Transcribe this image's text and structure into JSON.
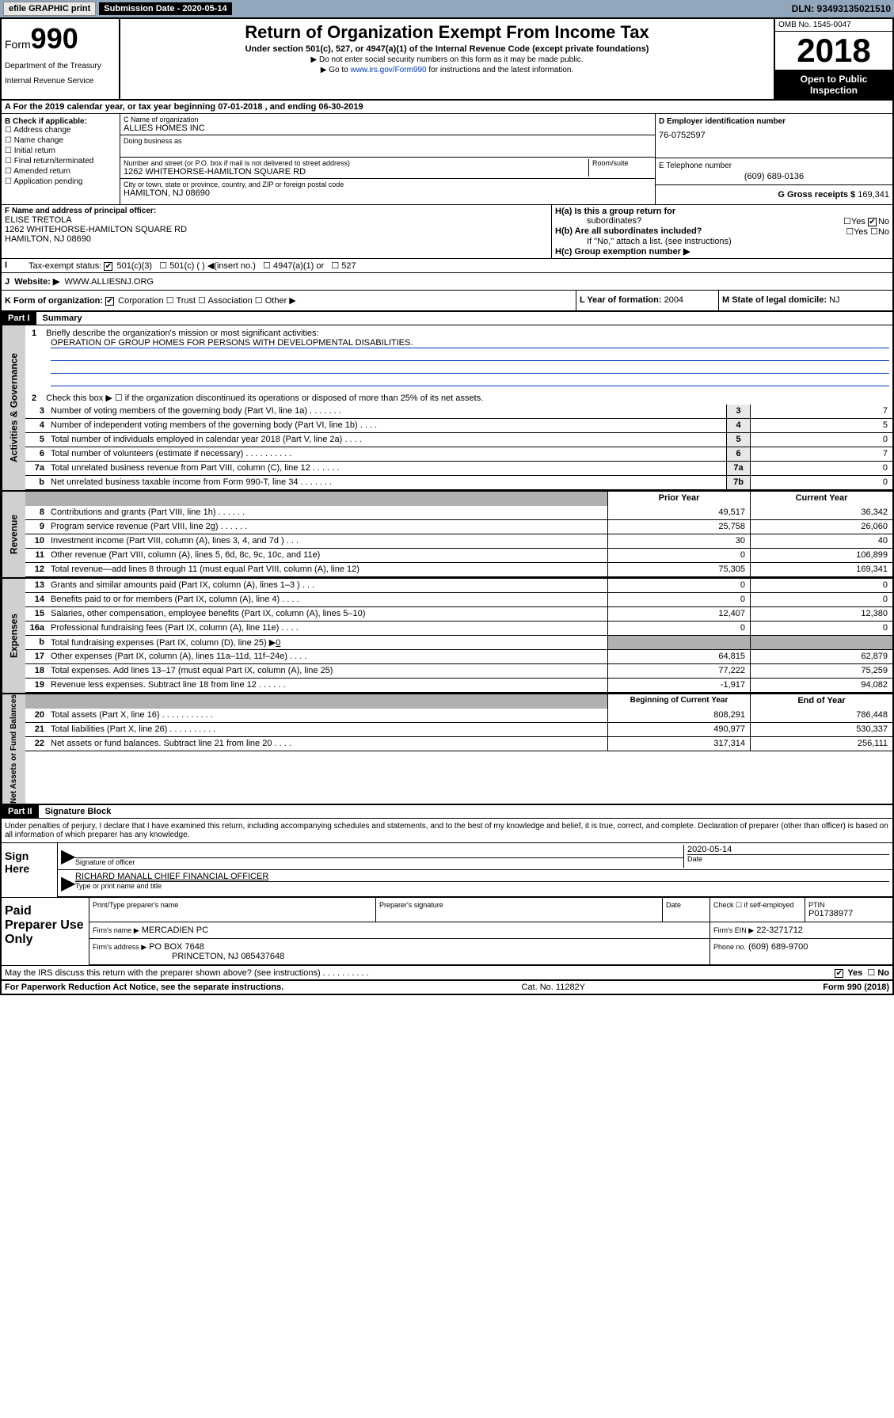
{
  "topbar": {
    "efile": "efile GRAPHIC print",
    "sub_label": "Submission Date - 2020-05-14",
    "dln": "DLN: 93493135021510"
  },
  "header": {
    "form_word": "Form",
    "form_num": "990",
    "dept1": "Department of the Treasury",
    "dept2": "Internal Revenue Service",
    "title": "Return of Organization Exempt From Income Tax",
    "sub": "Under section 501(c), 527, or 4947(a)(1) of the Internal Revenue Code (except private foundations)",
    "note1": "▶ Do not enter social security numbers on this form as it may be made public.",
    "note2a": "▶ Go to ",
    "note2link": "www.irs.gov/Form990",
    "note2b": " for instructions and the latest information.",
    "omb": "OMB No. 1545-0047",
    "year": "2018",
    "open1": "Open to Public",
    "open2": "Inspection"
  },
  "row_a": "A For the 2019 calendar year, or tax year beginning 07-01-2018    , and ending 06-30-2019",
  "col_b": {
    "title": "B Check if applicable:",
    "items": [
      "Address change",
      "Name change",
      "Initial return",
      "Final return/terminated",
      "Amended return",
      "Application pending"
    ]
  },
  "col_c": {
    "name_lbl": "C Name of organization",
    "name": "ALLIES HOMES INC",
    "dba_lbl": "Doing business as",
    "addr_lbl": "Number and street (or P.O. box if mail is not delivered to street address)",
    "room_lbl": "Room/suite",
    "addr": "1262 WHITEHORSE-HAMILTON SQUARE RD",
    "city_lbl": "City or town, state or province, country, and ZIP or foreign postal code",
    "city": "HAMILTON, NJ  08690"
  },
  "col_d": {
    "lbl": "D Employer identification number",
    "val": "76-0752597"
  },
  "col_e": {
    "lbl": "E Telephone number",
    "val": "(609) 689-0136"
  },
  "col_g": {
    "lbl": "G Gross receipts $",
    "val": "169,341"
  },
  "col_f": {
    "lbl": "F Name and address of principal officer:",
    "name": "ELISE TRETOLA",
    "addr1": "1262 WHITEHORSE-HAMILTON SQUARE RD",
    "addr2": "HAMILTON, NJ  08690"
  },
  "col_h": {
    "a_lbl": "H(a)  Is this a group return for",
    "a_sub": "subordinates?",
    "b_lbl": "H(b)  Are all subordinates included?",
    "b_note": "If \"No,\" attach a list. (see instructions)",
    "c_lbl": "H(c)  Group exemption number ▶"
  },
  "row_i": {
    "lbl": "Tax-exempt status:",
    "o1": "501(c)(3)",
    "o2": "501(c) (   ) ◀(insert no.)",
    "o3": "4947(a)(1) or",
    "o4": "527"
  },
  "row_j": {
    "lbl": "Website: ▶",
    "val": "WWW.ALLIESNJ.ORG"
  },
  "row_k": "K Form of organization:",
  "k_opts": [
    "Corporation",
    "Trust",
    "Association",
    "Other ▶"
  ],
  "row_l": {
    "lbl": "L Year of formation:",
    "val": "2004"
  },
  "row_m": {
    "lbl": "M State of legal domicile:",
    "val": "NJ"
  },
  "part1": {
    "hdr": "Part I",
    "title": "Summary"
  },
  "line1": {
    "num": "1",
    "desc": "Briefly describe the organization's mission or most significant activities:",
    "mission": "OPERATION OF GROUP HOMES FOR PERSONS WITH DEVELOPMENTAL DISABILITIES."
  },
  "line2": {
    "num": "2",
    "desc": "Check this box ▶ ☐  if the organization discontinued its operations or disposed of more than 25% of its net assets."
  },
  "summary_lines": [
    {
      "num": "3",
      "desc": "Number of voting members of the governing body (Part VI, line 1a)   .    .    .    .    .    .    .",
      "box": "3",
      "val": "7"
    },
    {
      "num": "4",
      "desc": "Number of independent voting members of the governing body (Part VI, line 1b)   .    .    .    .",
      "box": "4",
      "val": "5"
    },
    {
      "num": "5",
      "desc": "Total number of individuals employed in calendar year 2018 (Part V, line 2a)   .    .    .    .",
      "box": "5",
      "val": "0"
    },
    {
      "num": "6",
      "desc": "Total number of volunteers (estimate if necessary)   .    .    .    .    .    .    .    .    .    .",
      "box": "6",
      "val": "7"
    },
    {
      "num": "7a",
      "desc": "Total unrelated business revenue from Part VIII, column (C), line 12   .    .    .    .    .    .",
      "box": "7a",
      "val": "0"
    },
    {
      "num": "b",
      "desc": "Net unrelated business taxable income from Form 990-T, line 34   .    .    .    .    .    .    .",
      "box": "7b",
      "val": "0"
    }
  ],
  "side_labels": {
    "gov": "Activities & Governance",
    "rev": "Revenue",
    "exp": "Expenses",
    "net": "Net Assets or Fund Balances"
  },
  "col_hdrs": {
    "prior": "Prior Year",
    "curr": "Current Year",
    "begin": "Beginning of Current Year",
    "end": "End of Year"
  },
  "rev_lines": [
    {
      "num": "8",
      "desc": "Contributions and grants (Part VIII, line 1h)   .    .    .    .    .    .",
      "prior": "49,517",
      "curr": "36,342"
    },
    {
      "num": "9",
      "desc": "Program service revenue (Part VIII, line 2g)   .    .    .    .    .    .",
      "prior": "25,758",
      "curr": "26,060"
    },
    {
      "num": "10",
      "desc": "Investment income (Part VIII, column (A), lines 3, 4, and 7d )   .    .    .",
      "prior": "30",
      "curr": "40"
    },
    {
      "num": "11",
      "desc": "Other revenue (Part VIII, column (A), lines 5, 6d, 8c, 9c, 10c, and 11e)",
      "prior": "0",
      "curr": "106,899"
    },
    {
      "num": "12",
      "desc": "Total revenue—add lines 8 through 11 (must equal Part VIII, column (A), line 12)",
      "prior": "75,305",
      "curr": "169,341"
    }
  ],
  "exp_lines": [
    {
      "num": "13",
      "desc": "Grants and similar amounts paid (Part IX, column (A), lines 1–3 )   .    .    .",
      "prior": "0",
      "curr": "0"
    },
    {
      "num": "14",
      "desc": "Benefits paid to or for members (Part IX, column (A), line 4)   .    .    .    .",
      "prior": "0",
      "curr": "0"
    },
    {
      "num": "15",
      "desc": "Salaries, other compensation, employee benefits (Part IX, column (A), lines 5–10)",
      "prior": "12,407",
      "curr": "12,380"
    },
    {
      "num": "16a",
      "desc": "Professional fundraising fees (Part IX, column (A), line 11e)   .    .    .    .",
      "prior": "0",
      "curr": "0"
    }
  ],
  "line16b": {
    "num": "b",
    "desc": "Total fundraising expenses (Part IX, column (D), line 25) ▶",
    "val": "0"
  },
  "exp_lines2": [
    {
      "num": "17",
      "desc": "Other expenses (Part IX, column (A), lines 11a–11d, 11f–24e)   .    .    .    .",
      "prior": "64,815",
      "curr": "62,879"
    },
    {
      "num": "18",
      "desc": "Total expenses. Add lines 13–17 (must equal Part IX, column (A), line 25)",
      "prior": "77,222",
      "curr": "75,259"
    },
    {
      "num": "19",
      "desc": "Revenue less expenses. Subtract line 18 from line 12   .    .    .    .    .    .",
      "prior": "-1,917",
      "curr": "94,082"
    }
  ],
  "net_lines": [
    {
      "num": "20",
      "desc": "Total assets (Part X, line 16)   .    .    .    .    .    .    .    .    .    .    .",
      "prior": "808,291",
      "curr": "786,448"
    },
    {
      "num": "21",
      "desc": "Total liabilities (Part X, line 26)   .    .    .    .    .    .    .    .    .    .",
      "prior": "490,977",
      "curr": "530,337"
    },
    {
      "num": "22",
      "desc": "Net assets or fund balances. Subtract line 21 from line 20   .    .    .    .",
      "prior": "317,314",
      "curr": "256,111"
    }
  ],
  "part2": {
    "hdr": "Part II",
    "title": "Signature Block"
  },
  "sig_text": "Under penalties of perjury, I declare that I have examined this return, including accompanying schedules and statements, and to the best of my knowledge and belief, it is true, correct, and complete. Declaration of preparer (other than officer) is based on all information of which preparer has any knowledge.",
  "sign": {
    "here": "Sign Here",
    "sig_lbl": "Signature of officer",
    "date_lbl": "Date",
    "date": "2020-05-14",
    "name": "RICHARD MANALL  CHIEF FINANCIAL OFFICER",
    "name_lbl": "Type or print name and title"
  },
  "paid": {
    "title": "Paid Preparer Use Only",
    "h1": "Print/Type preparer's name",
    "h2": "Preparer's signature",
    "h3": "Date",
    "h4a": "Check ☐ if self-employed",
    "h5": "PTIN",
    "ptin": "P01738977",
    "firm_lbl": "Firm's name      ▶",
    "firm": "MERCADIEN PC",
    "ein_lbl": "Firm's EIN ▶",
    "ein": "22-3271712",
    "addr_lbl": "Firm's address ▶",
    "addr1": "PO BOX 7648",
    "addr2": "PRINCETON, NJ  085437648",
    "phone_lbl": "Phone no.",
    "phone": "(609) 689-9700"
  },
  "discuss": "May the IRS discuss this return with the preparer shown above? (see instructions)    .    .    .    .    .    .    .    .    .    .",
  "footer": {
    "left": "For Paperwork Reduction Act Notice, see the separate instructions.",
    "mid": "Cat. No. 11282Y",
    "right": "Form 990 (2018)"
  },
  "yesno": {
    "yes": "Yes",
    "no": "No"
  }
}
